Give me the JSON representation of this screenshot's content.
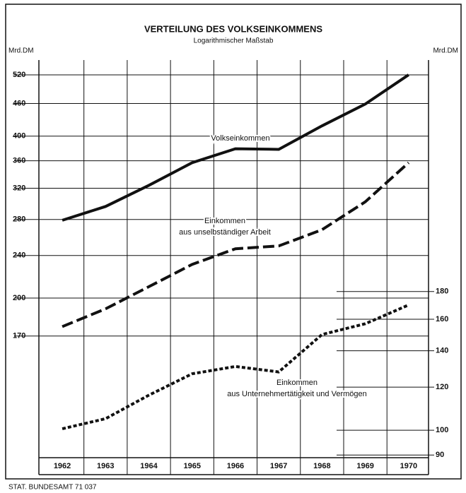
{
  "chart_data": {
    "type": "line",
    "title": "VERTEILUNG DES VOLKSEINKOMMENS",
    "subtitle": "Logarithmischer Maßstab",
    "ylabel": "Mrd.DM",
    "y2label": "Mrd.DM",
    "footer": "STAT. BUNDESAMT 71 037",
    "x": [
      1962,
      1963,
      1964,
      1965,
      1966,
      1967,
      1968,
      1969,
      1970
    ],
    "xlim": [
      1961.46,
      1970.46
    ],
    "xticks": [
      1962,
      1963,
      1964,
      1965,
      1966,
      1967,
      1968,
      1969,
      1970
    ],
    "ylim": [
      101,
      554
    ],
    "yscale": "log",
    "yticks": [
      170,
      200,
      240,
      280,
      320,
      360,
      400,
      460,
      520
    ],
    "y2lim": [
      89,
      480
    ],
    "y2scale": "log",
    "y2ticks": [
      90,
      100,
      120,
      140,
      160,
      180
    ],
    "grid": true,
    "series": [
      {
        "name": [
          "Volkseinkommen"
        ],
        "color": "#111",
        "style": "solid",
        "values": [
          279,
          296,
          324,
          357,
          379,
          378,
          418,
          459,
          520
        ]
      },
      {
        "name": [
          "Einkommen",
          "aus unselbständiger Arbeit"
        ],
        "color": "#111",
        "style": "dashed",
        "values": [
          177,
          191,
          210,
          231,
          247,
          250,
          268,
          302,
          357
        ]
      },
      {
        "name": [
          "Einkommen",
          "aus Unternehmertätigkeit und Vermögen"
        ],
        "color": "#111",
        "style": "dotted",
        "axis": "y2",
        "values": [
          100.6,
          105,
          116,
          127,
          131,
          128,
          150,
          157,
          170
        ]
      }
    ]
  }
}
